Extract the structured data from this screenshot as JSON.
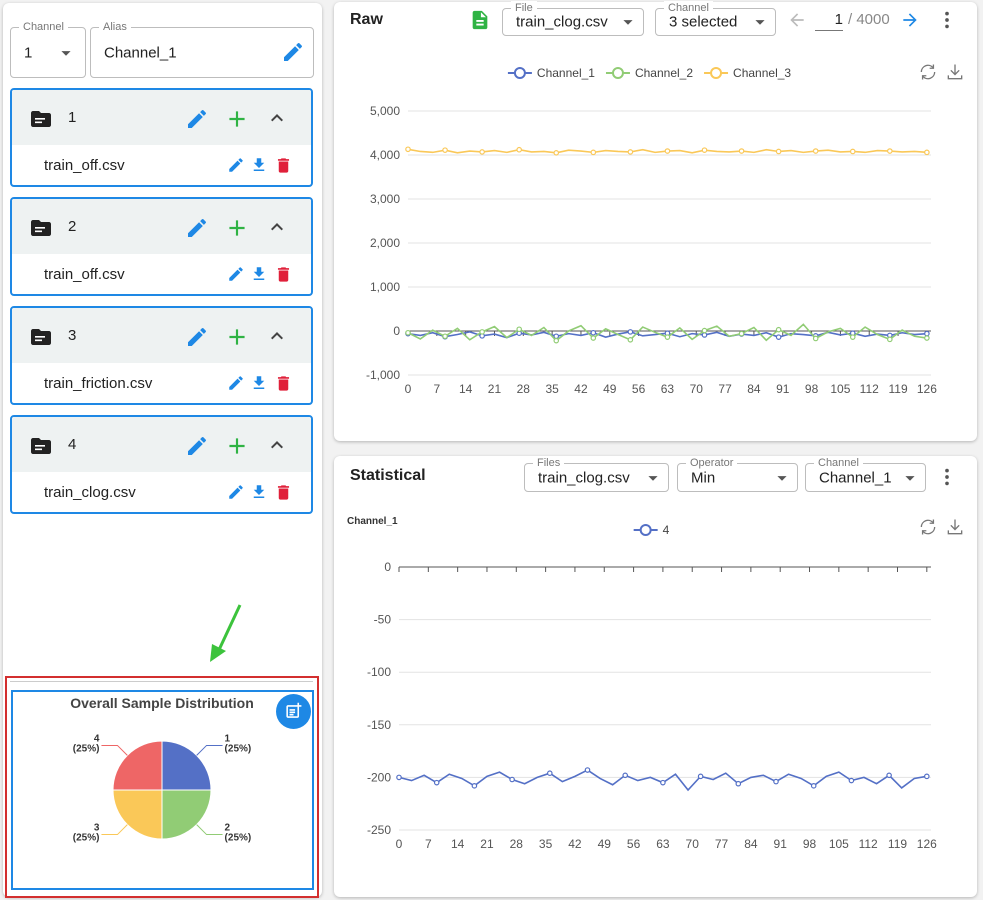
{
  "sidebar": {
    "channel": {
      "label": "Channel",
      "value": "1"
    },
    "alias": {
      "label": "Alias",
      "value": "Channel_1"
    },
    "groups": [
      {
        "name": "1",
        "file": "train_off.csv"
      },
      {
        "name": "2",
        "file": "train_off.csv"
      },
      {
        "name": "3",
        "file": "train_friction.csv"
      },
      {
        "name": "4",
        "file": "train_clog.csv"
      }
    ]
  },
  "raw_panel": {
    "title": "Raw",
    "file": {
      "label": "File",
      "value": "train_clog.csv"
    },
    "channel": {
      "label": "Channel",
      "value": "3 selected"
    },
    "page": {
      "current": "1",
      "total": "/ 4000"
    }
  },
  "stat_panel": {
    "title": "Statistical",
    "files": {
      "label": "Files",
      "value": "train_clog.csv"
    },
    "operator": {
      "label": "Operator",
      "value": "Min"
    },
    "channel": {
      "label": "Channel",
      "value": "Channel_1"
    }
  },
  "chart_data": [
    {
      "type": "line",
      "legend": "top",
      "grid": true,
      "x": [
        0,
        3,
        6,
        9,
        12,
        15,
        18,
        21,
        24,
        27,
        30,
        33,
        36,
        39,
        42,
        45,
        48,
        51,
        54,
        57,
        60,
        63,
        66,
        69,
        72,
        75,
        78,
        81,
        84,
        87,
        90,
        93,
        96,
        99,
        102,
        105,
        108,
        111,
        114,
        117,
        120,
        123,
        126
      ],
      "series": [
        {
          "name": "Channel_1",
          "color": "#5470c6",
          "values": [
            -60,
            -100,
            -40,
            -130,
            -80,
            -20,
            -110,
            -70,
            -150,
            -50,
            -90,
            -30,
            -120,
            -60,
            -100,
            -40,
            -140,
            -70,
            -20,
            -110,
            -80,
            -50,
            -130,
            -60,
            -90,
            -30,
            -120,
            -70,
            -100,
            -40,
            -140,
            -60,
            -80,
            -110,
            -30,
            -90,
            -50,
            -120,
            -70,
            -100,
            -40,
            -80,
            -60
          ]
        },
        {
          "name": "Channel_2",
          "color": "#91cc75",
          "values": [
            -40,
            -180,
            20,
            -120,
            60,
            -200,
            -20,
            100,
            -150,
            40,
            -100,
            80,
            -220,
            0,
            120,
            -160,
            50,
            -80,
            -200,
            90,
            -30,
            -140,
            70,
            -190,
            10,
            110,
            -120,
            -60,
            80,
            -210,
            30,
            -100,
            150,
            -170,
            -20,
            60,
            -140,
            90,
            -80,
            -190,
            20,
            -120,
            -160
          ]
        },
        {
          "name": "Channel_3",
          "color": "#fac858",
          "values": [
            4130,
            4080,
            4060,
            4110,
            4050,
            4090,
            4070,
            4100,
            4060,
            4120,
            4070,
            4080,
            4050,
            4110,
            4090,
            4060,
            4100,
            4080,
            4070,
            4120,
            4060,
            4090,
            4100,
            4050,
            4110,
            4080,
            4070,
            4090,
            4060,
            4120,
            4080,
            4100,
            4060,
            4090,
            4110,
            4070,
            4080,
            4060,
            4100,
            4090,
            4070,
            4080,
            4060
          ]
        }
      ],
      "xlim": [
        0,
        127
      ],
      "xticks": [
        0,
        7,
        14,
        21,
        28,
        35,
        42,
        49,
        56,
        63,
        70,
        77,
        84,
        91,
        98,
        105,
        112,
        119,
        126
      ],
      "ylim": [
        -1000,
        5000
      ],
      "yticks": [
        {
          "value": -1000,
          "label": "-1,000"
        },
        0,
        {
          "value": 1000,
          "label": "1,000"
        },
        {
          "value": 2000,
          "label": "2,000"
        },
        {
          "value": 3000,
          "label": "3,000"
        },
        {
          "value": 4000,
          "label": "4,000"
        },
        {
          "value": 5000,
          "label": "5,000"
        }
      ]
    },
    {
      "type": "line",
      "legend": "top",
      "grid": true,
      "ylabel": "Channel_1",
      "x": [
        0,
        3,
        6,
        9,
        12,
        15,
        18,
        21,
        24,
        27,
        30,
        33,
        36,
        39,
        42,
        45,
        48,
        51,
        54,
        57,
        60,
        63,
        66,
        69,
        72,
        75,
        78,
        81,
        84,
        87,
        90,
        93,
        96,
        99,
        102,
        105,
        108,
        111,
        114,
        117,
        120,
        123,
        126
      ],
      "series": [
        {
          "name": "4",
          "color": "#5470c6",
          "values": [
            -200,
            -203,
            -198,
            -205,
            -197,
            -201,
            -208,
            -199,
            -195,
            -202,
            -206,
            -200,
            -196,
            -204,
            -199,
            -193,
            -201,
            -207,
            -198,
            -203,
            -200,
            -205,
            -197,
            -212,
            -199,
            -202,
            -196,
            -206,
            -200,
            -198,
            -204,
            -197,
            -201,
            -208,
            -199,
            -195,
            -203,
            -200,
            -206,
            -198,
            -210,
            -201,
            -199
          ]
        }
      ],
      "xlim": [
        0,
        127
      ],
      "xticks": [
        0,
        7,
        14,
        21,
        28,
        35,
        42,
        49,
        56,
        63,
        70,
        77,
        84,
        91,
        98,
        105,
        112,
        119,
        126
      ],
      "ylim": [
        -250,
        0
      ],
      "yticks": [
        -250,
        -200,
        -150,
        -100,
        -50,
        0
      ]
    },
    {
      "type": "pie",
      "title": "Overall Sample Distribution",
      "categories": [
        "1",
        "2",
        "3",
        "4"
      ],
      "values": [
        25,
        25,
        25,
        25
      ],
      "value_labels": [
        "(25%)",
        "(25%)",
        "(25%)",
        "(25%)"
      ],
      "colors": [
        "#5470c6",
        "#91cc75",
        "#fac858",
        "#ee6666"
      ]
    }
  ]
}
